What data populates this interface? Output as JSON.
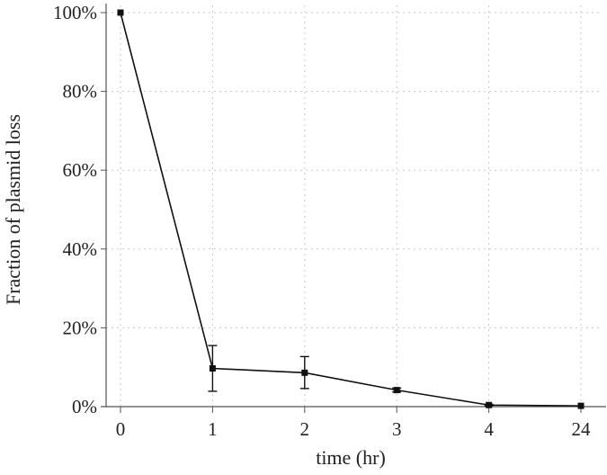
{
  "chart_data": {
    "type": "line",
    "title": "",
    "xlabel": "time (hr)",
    "ylabel": "Fraction of plasmid loss",
    "categories": [
      "0",
      "1",
      "2",
      "3",
      "4",
      "24"
    ],
    "values": [
      100,
      9.7,
      8.6,
      4.2,
      0.4,
      0.2
    ],
    "error_low": [
      100,
      3.9,
      4.6,
      3.7,
      0.2,
      0.1
    ],
    "error_high": [
      100,
      15.5,
      12.7,
      4.7,
      0.6,
      0.3
    ],
    "ylim": [
      0,
      100
    ],
    "yticks": [
      "0%",
      "20%",
      "40%",
      "60%",
      "80%",
      "100%"
    ],
    "ytick_values": [
      0,
      20,
      40,
      60,
      80,
      100
    ],
    "grid": true,
    "marker": "square",
    "line_color": "#111111",
    "grid_color": "#c8c8c8"
  }
}
